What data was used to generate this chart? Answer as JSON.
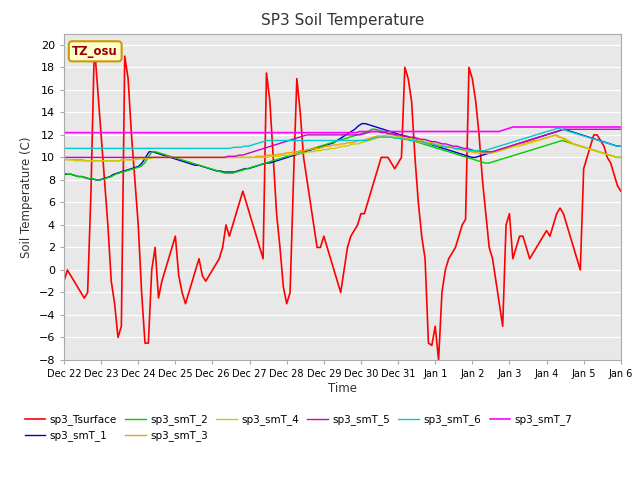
{
  "title": "SP3 Soil Temperature",
  "ylabel": "Soil Temperature (C)",
  "xlabel": "Time",
  "fig_bg_color": "#ffffff",
  "plot_bg_color": "#e8e8e8",
  "annotation_text": "TZ_osu",
  "annotation_bg": "#ffffcc",
  "annotation_border": "#cc9900",
  "annotation_text_color": "#990000",
  "x_start": 0,
  "x_end": 360,
  "ylim": [
    -8,
    21
  ],
  "yticks": [
    -8,
    -6,
    -4,
    -2,
    0,
    2,
    4,
    6,
    8,
    10,
    12,
    14,
    16,
    18,
    20
  ],
  "x_tick_labels": [
    "Dec 22",
    "Dec 23",
    "Dec 24",
    "Dec 25",
    "Dec 26",
    "Dec 27",
    "Dec 28",
    "Dec 29",
    "Dec 30",
    "Dec 31",
    "Jan 1",
    "Jan 2",
    "Jan 3",
    "Jan 4",
    "Jan 5",
    "Jan 6"
  ],
  "x_tick_positions": [
    0,
    24,
    48,
    72,
    96,
    120,
    144,
    168,
    192,
    216,
    240,
    264,
    288,
    312,
    336,
    360
  ],
  "series": {
    "sp3_Tsurface": {
      "color": "#ff0000",
      "linewidth": 1.2,
      "values": [
        -1,
        0,
        -0.5,
        -1,
        -1.5,
        -2,
        -2.5,
        -2,
        7,
        20,
        16,
        12,
        8,
        4,
        -1,
        -3,
        -6,
        -5,
        19,
        17,
        12,
        8,
        4,
        -2,
        -6.5,
        -6.5,
        0,
        2,
        -2.5,
        -1,
        0,
        1,
        2,
        3,
        -0.5,
        -2,
        -3,
        -2,
        -1,
        0,
        1,
        -0.5,
        -1,
        -0.5,
        0,
        0.5,
        1,
        2,
        4,
        3,
        4,
        5,
        6,
        7,
        6,
        5,
        4,
        3,
        2,
        1,
        17.5,
        15,
        10,
        5,
        2,
        -1.5,
        -3,
        -2,
        8,
        17,
        14,
        10,
        8,
        6,
        4,
        2,
        2,
        3,
        2,
        1,
        0,
        -1,
        -2,
        0,
        2,
        3,
        3.5,
        4,
        5,
        5,
        6,
        7,
        8,
        9,
        10,
        10,
        10,
        9.5,
        9,
        9.5,
        10,
        18,
        17,
        15,
        10,
        6,
        3,
        1,
        -6.5,
        -6.7,
        -5,
        -8,
        -2,
        0,
        1,
        1.5,
        2,
        3,
        4,
        4.5,
        18,
        17,
        15,
        12,
        8,
        5,
        2,
        1,
        -1,
        -3,
        -5,
        4,
        5,
        1,
        2,
        3,
        3,
        2,
        1,
        1.5,
        2,
        2.5,
        3,
        3.5,
        3,
        4,
        5,
        5.5,
        5,
        4,
        3,
        2,
        1,
        0,
        9,
        10,
        11,
        12,
        12,
        11.5,
        11,
        10,
        9.5,
        8.5,
        7.5,
        7
      ]
    },
    "sp3_smT_1": {
      "color": "#0000cc",
      "linewidth": 1.0,
      "values": [
        8.5,
        8.5,
        8.5,
        8.4,
        8.3,
        8.3,
        8.2,
        8.1,
        8.1,
        8,
        8,
        8.1,
        8.2,
        8.3,
        8.5,
        8.6,
        8.7,
        8.8,
        8.9,
        9,
        9.1,
        9.2,
        9.5,
        10,
        10.5,
        10.5,
        10.4,
        10.3,
        10.2,
        10.1,
        10,
        9.9,
        9.8,
        9.7,
        9.6,
        9.5,
        9.4,
        9.3,
        9.3,
        9.2,
        9.1,
        9,
        8.9,
        8.8,
        8.8,
        8.7,
        8.7,
        8.7,
        8.7,
        8.8,
        8.9,
        9,
        9,
        9.1,
        9.2,
        9.3,
        9.4,
        9.5,
        9.5,
        9.6,
        9.7,
        9.8,
        9.9,
        10,
        10.1,
        10.2,
        10.3,
        10.4,
        10.5,
        10.6,
        10.7,
        10.8,
        10.9,
        11,
        11.1,
        11.2,
        11.3,
        11.5,
        11.7,
        11.9,
        12.1,
        12.3,
        12.5,
        12.8,
        13,
        13,
        12.9,
        12.8,
        12.7,
        12.6,
        12.5,
        12.4,
        12.3,
        12.2,
        12.1,
        12,
        11.9,
        11.8,
        11.7,
        11.6,
        11.5,
        11.4,
        11.3,
        11.2,
        11.1,
        11,
        10.9,
        10.8,
        10.7,
        10.6,
        10.5,
        10.4,
        10.3,
        10.2,
        10.1,
        10,
        10,
        10.1,
        10.2,
        10.3,
        10.4,
        10.5,
        10.6,
        10.7,
        10.8,
        10.9,
        11,
        11.1,
        11.2,
        11.3,
        11.4,
        11.5,
        11.6,
        11.7,
        11.8,
        11.9,
        12,
        12.1,
        12.2,
        12.3,
        12.4,
        12.5,
        12.4,
        12.3,
        12.2,
        12.1,
        12,
        11.9,
        11.8,
        11.7,
        11.6,
        11.5,
        11.4,
        11.3,
        11.2,
        11.1,
        11,
        11
      ]
    },
    "sp3_smT_2": {
      "color": "#00cc00",
      "linewidth": 1.0,
      "values": [
        8.6,
        8.5,
        8.5,
        8.4,
        8.3,
        8.3,
        8.2,
        8.1,
        8.1,
        8,
        8,
        8.1,
        8.2,
        8.3,
        8.5,
        8.6,
        8.7,
        8.8,
        8.9,
        9,
        9.1,
        9.2,
        9.5,
        10,
        10.5,
        10.5,
        10.4,
        10.3,
        10.2,
        10.1,
        10,
        9.9,
        9.8,
        9.7,
        9.6,
        9.5,
        9.4,
        9.3,
        9.2,
        9.1,
        9,
        8.9,
        8.8,
        8.7,
        8.6,
        8.6,
        8.6,
        8.7,
        8.8,
        8.9,
        9,
        9.1,
        9.2,
        9.3,
        9.4,
        9.5,
        9.6,
        9.7,
        9.8,
        9.9,
        10,
        10.1,
        10.2,
        10.3,
        10.4,
        10.5,
        10.6,
        10.7,
        10.8,
        10.9,
        11,
        11.1,
        11.2,
        11.3,
        11.4,
        11.5,
        11.6,
        11.7,
        11.8,
        11.9,
        12,
        12.1,
        12.2,
        12.3,
        12.5,
        12.5,
        12.4,
        12.3,
        12.2,
        12.1,
        12,
        11.9,
        11.8,
        11.7,
        11.6,
        11.5,
        11.4,
        11.3,
        11.2,
        11.1,
        11,
        10.9,
        10.8,
        10.7,
        10.6,
        10.5,
        10.4,
        10.3,
        10.2,
        10.1,
        10,
        9.9,
        9.8,
        9.7,
        9.6,
        9.5,
        9.5,
        9.6,
        9.7,
        9.8,
        9.9,
        10,
        10.1,
        10.2,
        10.3,
        10.4,
        10.5,
        10.6,
        10.7,
        10.8,
        10.9,
        11,
        11.1,
        11.2,
        11.3,
        11.4,
        11.5,
        11.4,
        11.3,
        11.2,
        11.1,
        11,
        10.9,
        10.8,
        10.7,
        10.6,
        10.5,
        10.4,
        10.3,
        10.2,
        10.1,
        10,
        10
      ]
    },
    "sp3_smT_3": {
      "color": "#ff9900",
      "linewidth": 1.0,
      "values": [
        9.8,
        9.8,
        9.8,
        9.8,
        9.8,
        9.8,
        9.7,
        9.7,
        9.7,
        9.7,
        9.7,
        9.7,
        9.7,
        9.7,
        9.7,
        9.7,
        9.8,
        9.8,
        9.8,
        9.8,
        9.9,
        9.9,
        9.9,
        9.9,
        10,
        10,
        10,
        10,
        10,
        10,
        10,
        10,
        10,
        10,
        10,
        10,
        10,
        10,
        10,
        10,
        10,
        10,
        10,
        10,
        10,
        10,
        10,
        10,
        10,
        10,
        10,
        10,
        10,
        10.1,
        10.1,
        10.1,
        10.2,
        10.2,
        10.2,
        10.3,
        10.3,
        10.4,
        10.4,
        10.5,
        10.5,
        10.6,
        10.6,
        10.7,
        10.7,
        10.8,
        10.8,
        10.9,
        11,
        11,
        11.1,
        11.1,
        11.2,
        11.2,
        11.3,
        11.3,
        11.4,
        11.5,
        11.5,
        11.6,
        11.7,
        11.8,
        11.9,
        11.9,
        11.9,
        11.8,
        11.8,
        11.7,
        11.7,
        11.6,
        11.6,
        11.5,
        11.5,
        11.4,
        11.3,
        11.3,
        11.2,
        11.2,
        11.1,
        11,
        11,
        10.9,
        10.9,
        10.8,
        10.7,
        10.7,
        10.6,
        10.5,
        10.5,
        10.4,
        10.4,
        10.4,
        10.4,
        10.4,
        10.5,
        10.6,
        10.7,
        10.8,
        10.9,
        11,
        11.1,
        11.2,
        11.2,
        11.3,
        11.4,
        11.5,
        11.5,
        11.6,
        11.7,
        11.8,
        11.9,
        12,
        11.8,
        11.7,
        11.5,
        11.3,
        11.2,
        11.1,
        11,
        10.9,
        10.8,
        10.7,
        10.6,
        10.5,
        10.4,
        10.3,
        10.2,
        10.1,
        10,
        10
      ]
    },
    "sp3_smT_4": {
      "color": "#cccc00",
      "linewidth": 1.0,
      "values": [
        9.8,
        9.8,
        9.8,
        9.7,
        9.7,
        9.7,
        9.7,
        9.7,
        9.7,
        9.7,
        9.7,
        9.7,
        9.7,
        9.7,
        9.7,
        9.7,
        9.8,
        9.8,
        9.8,
        9.8,
        9.9,
        9.9,
        9.9,
        9.9,
        10,
        10,
        10,
        10,
        10,
        10,
        10,
        10,
        10,
        10,
        10,
        10,
        10,
        10,
        10,
        10,
        10,
        10,
        10,
        10,
        10,
        10,
        10,
        10,
        10,
        10,
        10,
        10,
        10,
        10,
        10,
        10.1,
        10.1,
        10.1,
        10.2,
        10.2,
        10.2,
        10.3,
        10.3,
        10.4,
        10.4,
        10.5,
        10.5,
        10.6,
        10.6,
        10.7,
        10.7,
        10.8,
        10.8,
        10.9,
        11,
        11,
        11.1,
        11.2,
        11.2,
        11.3,
        11.4,
        11.5,
        11.6,
        11.7,
        11.8,
        11.9,
        12,
        12,
        11.9,
        11.9,
        11.8,
        11.7,
        11.7,
        11.6,
        11.5,
        11.5,
        11.4,
        11.3,
        11.3,
        11.2,
        11.1,
        11,
        11,
        10.9,
        10.8,
        10.8,
        10.7,
        10.6,
        10.6,
        10.5,
        10.5,
        10.4,
        10.4,
        10.4,
        10.4,
        10.5,
        10.6,
        10.7,
        10.8,
        10.9,
        11,
        11,
        11.1,
        11.2,
        11.3,
        11.4,
        11.5,
        11.6,
        11.7,
        11.8,
        11.9,
        12,
        11.8,
        11.7,
        11.5,
        11.3,
        11.1,
        11,
        10.9,
        10.8,
        10.7,
        10.6,
        10.5,
        10.4,
        10.3,
        10.2,
        10.1,
        10,
        10
      ]
    },
    "sp3_smT_5": {
      "color": "#cc00cc",
      "linewidth": 1.0,
      "values": [
        10,
        10,
        10,
        10,
        10,
        10,
        10,
        10,
        10,
        10,
        10,
        10,
        10,
        10,
        10,
        10,
        10,
        10,
        10,
        10,
        10,
        10,
        10,
        10,
        10,
        10,
        10,
        10,
        10,
        10,
        10,
        10,
        10,
        10,
        10,
        10,
        10,
        10,
        10,
        10,
        10,
        10,
        10,
        10,
        10,
        10,
        10.1,
        10.1,
        10.1,
        10.2,
        10.2,
        10.3,
        10.4,
        10.5,
        10.6,
        10.7,
        10.8,
        10.9,
        11,
        11.1,
        11.2,
        11.3,
        11.4,
        11.5,
        11.6,
        11.7,
        11.8,
        11.9,
        12,
        12,
        12,
        12,
        12,
        12,
        12,
        12,
        12,
        12,
        12,
        12,
        12,
        12,
        12,
        12,
        12.1,
        12.2,
        12.3,
        12.3,
        12.3,
        12.2,
        12.2,
        12.1,
        12.1,
        12,
        12,
        11.9,
        11.9,
        11.8,
        11.8,
        11.7,
        11.6,
        11.6,
        11.5,
        11.4,
        11.4,
        11.3,
        11.2,
        11.2,
        11.1,
        11,
        11,
        10.9,
        10.8,
        10.8,
        10.7,
        10.6,
        10.6,
        10.5,
        10.5,
        10.5,
        10.5,
        10.6,
        10.7,
        10.8,
        10.9,
        11,
        11.1,
        11.2,
        11.3,
        11.4,
        11.5,
        11.6,
        11.7,
        11.8,
        11.9,
        12,
        12.1,
        12.2,
        12.3,
        12.4,
        12.5,
        12.5,
        12.5,
        12.5,
        12.5,
        12.5,
        12.5,
        12.5,
        12.5,
        12.5,
        12.5,
        12.5,
        12.5,
        12.5,
        12.5,
        12.5,
        12.5
      ]
    },
    "sp3_smT_6": {
      "color": "#00cccc",
      "linewidth": 1.0,
      "values": [
        10.8,
        10.8,
        10.8,
        10.8,
        10.8,
        10.8,
        10.8,
        10.8,
        10.8,
        10.8,
        10.8,
        10.8,
        10.8,
        10.8,
        10.8,
        10.8,
        10.8,
        10.8,
        10.8,
        10.8,
        10.8,
        10.8,
        10.8,
        10.8,
        10.8,
        10.8,
        10.8,
        10.8,
        10.8,
        10.8,
        10.8,
        10.8,
        10.8,
        10.8,
        10.8,
        10.8,
        10.8,
        10.8,
        10.8,
        10.8,
        10.8,
        10.8,
        10.8,
        10.8,
        10.8,
        10.8,
        10.9,
        10.9,
        10.9,
        11,
        11,
        11.1,
        11.2,
        11.3,
        11.4,
        11.5,
        11.5,
        11.5,
        11.5,
        11.5,
        11.5,
        11.5,
        11.5,
        11.5,
        11.5,
        11.5,
        11.5,
        11.5,
        11.5,
        11.5,
        11.5,
        11.5,
        11.5,
        11.5,
        11.5,
        11.5,
        11.5,
        11.5,
        11.5,
        11.5,
        11.5,
        11.5,
        11.5,
        11.6,
        11.7,
        11.8,
        11.8,
        11.8,
        11.8,
        11.8,
        11.7,
        11.7,
        11.6,
        11.6,
        11.5,
        11.5,
        11.4,
        11.4,
        11.3,
        11.2,
        11.2,
        11.1,
        11,
        11,
        10.9,
        10.9,
        10.8,
        10.8,
        10.7,
        10.7,
        10.6,
        10.6,
        10.6,
        10.6,
        10.6,
        10.7,
        10.8,
        10.9,
        11,
        11.1,
        11.2,
        11.3,
        11.4,
        11.5,
        11.6,
        11.7,
        11.8,
        11.9,
        12,
        12.1,
        12.2,
        12.3,
        12.4,
        12.5,
        12.6,
        12.5,
        12.4,
        12.3,
        12.2,
        12.1,
        12,
        11.9,
        11.8,
        11.7,
        11.6,
        11.5,
        11.4,
        11.3,
        11.2,
        11.1,
        11,
        11
      ]
    },
    "sp3_smT_7": {
      "color": "#ff00ff",
      "linewidth": 1.2,
      "values": [
        12.2,
        12.2,
        12.2,
        12.2,
        12.2,
        12.2,
        12.2,
        12.2,
        12.2,
        12.2,
        12.2,
        12.2,
        12.2,
        12.2,
        12.2,
        12.2,
        12.2,
        12.2,
        12.2,
        12.2,
        12.2,
        12.2,
        12.2,
        12.2,
        12.2,
        12.2,
        12.2,
        12.2,
        12.2,
        12.2,
        12.2,
        12.2,
        12.2,
        12.2,
        12.2,
        12.2,
        12.2,
        12.2,
        12.2,
        12.2,
        12.2,
        12.2,
        12.2,
        12.2,
        12.2,
        12.2,
        12.2,
        12.2,
        12.2,
        12.2,
        12.2,
        12.2,
        12.2,
        12.2,
        12.2,
        12.2,
        12.2,
        12.2,
        12.2,
        12.2,
        12.2,
        12.2,
        12.2,
        12.2,
        12.2,
        12.2,
        12.2,
        12.2,
        12.2,
        12.2,
        12.2,
        12.2,
        12.2,
        12.2,
        12.2,
        12.2,
        12.2,
        12.2,
        12.2,
        12.2,
        12.2,
        12.2,
        12.2,
        12.2,
        12.2,
        12.3,
        12.3,
        12.3,
        12.3,
        12.3,
        12.3,
        12.3,
        12.3,
        12.3,
        12.3,
        12.3,
        12.3,
        12.3,
        12.3,
        12.3,
        12.3,
        12.3,
        12.3,
        12.3,
        12.3,
        12.3,
        12.3,
        12.3,
        12.3,
        12.3,
        12.3,
        12.3,
        12.3,
        12.3,
        12.3,
        12.3,
        12.3,
        12.3,
        12.3,
        12.3,
        12.3,
        12.3,
        12.3,
        12.3,
        12.3,
        12.3,
        12.4,
        12.5,
        12.6,
        12.7,
        12.7,
        12.7,
        12.7,
        12.7,
        12.7,
        12.7,
        12.7,
        12.7,
        12.7,
        12.7,
        12.7,
        12.7,
        12.7,
        12.7,
        12.7,
        12.7,
        12.7,
        12.7,
        12.7,
        12.7,
        12.7,
        12.7,
        12.7,
        12.7,
        12.7,
        12.7,
        12.7,
        12.7,
        12.7,
        12.7,
        12.7
      ]
    }
  }
}
